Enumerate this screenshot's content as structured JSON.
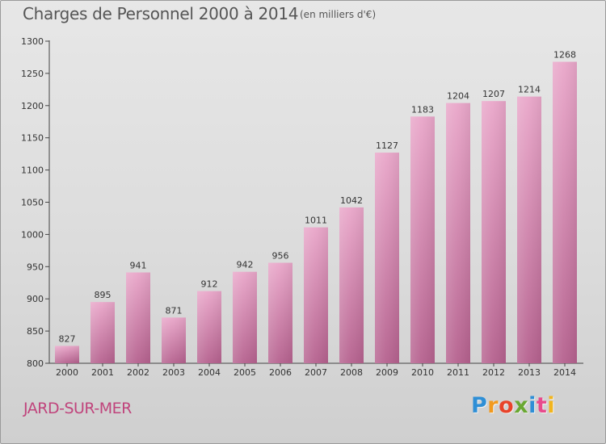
{
  "chart_data": {
    "type": "bar",
    "title": "Charges de Personnel 2000 à 2014",
    "subtitle": "(en milliers d'€)",
    "categories": [
      "2000",
      "2001",
      "2002",
      "2003",
      "2004",
      "2005",
      "2006",
      "2007",
      "2008",
      "2009",
      "2010",
      "2011",
      "2012",
      "2013",
      "2014"
    ],
    "values": [
      827,
      895,
      941,
      871,
      912,
      942,
      956,
      1011,
      1042,
      1127,
      1183,
      1204,
      1207,
      1214,
      1268
    ],
    "ylim": [
      800,
      1300
    ],
    "yticks": [
      800,
      850,
      900,
      950,
      1000,
      1050,
      1100,
      1150,
      1200,
      1250,
      1300
    ],
    "grid": false,
    "bar_color": "#d98bb3"
  },
  "location": "JARD-SUR-MER",
  "logo": {
    "letters": [
      "P",
      "r",
      "o",
      "x",
      "i",
      "t",
      "i"
    ],
    "colors": [
      "#2f8fd6",
      "#f29a1e",
      "#e8432a",
      "#6aa832",
      "#2f8fd6",
      "#e84a8c",
      "#f2b51e"
    ]
  }
}
